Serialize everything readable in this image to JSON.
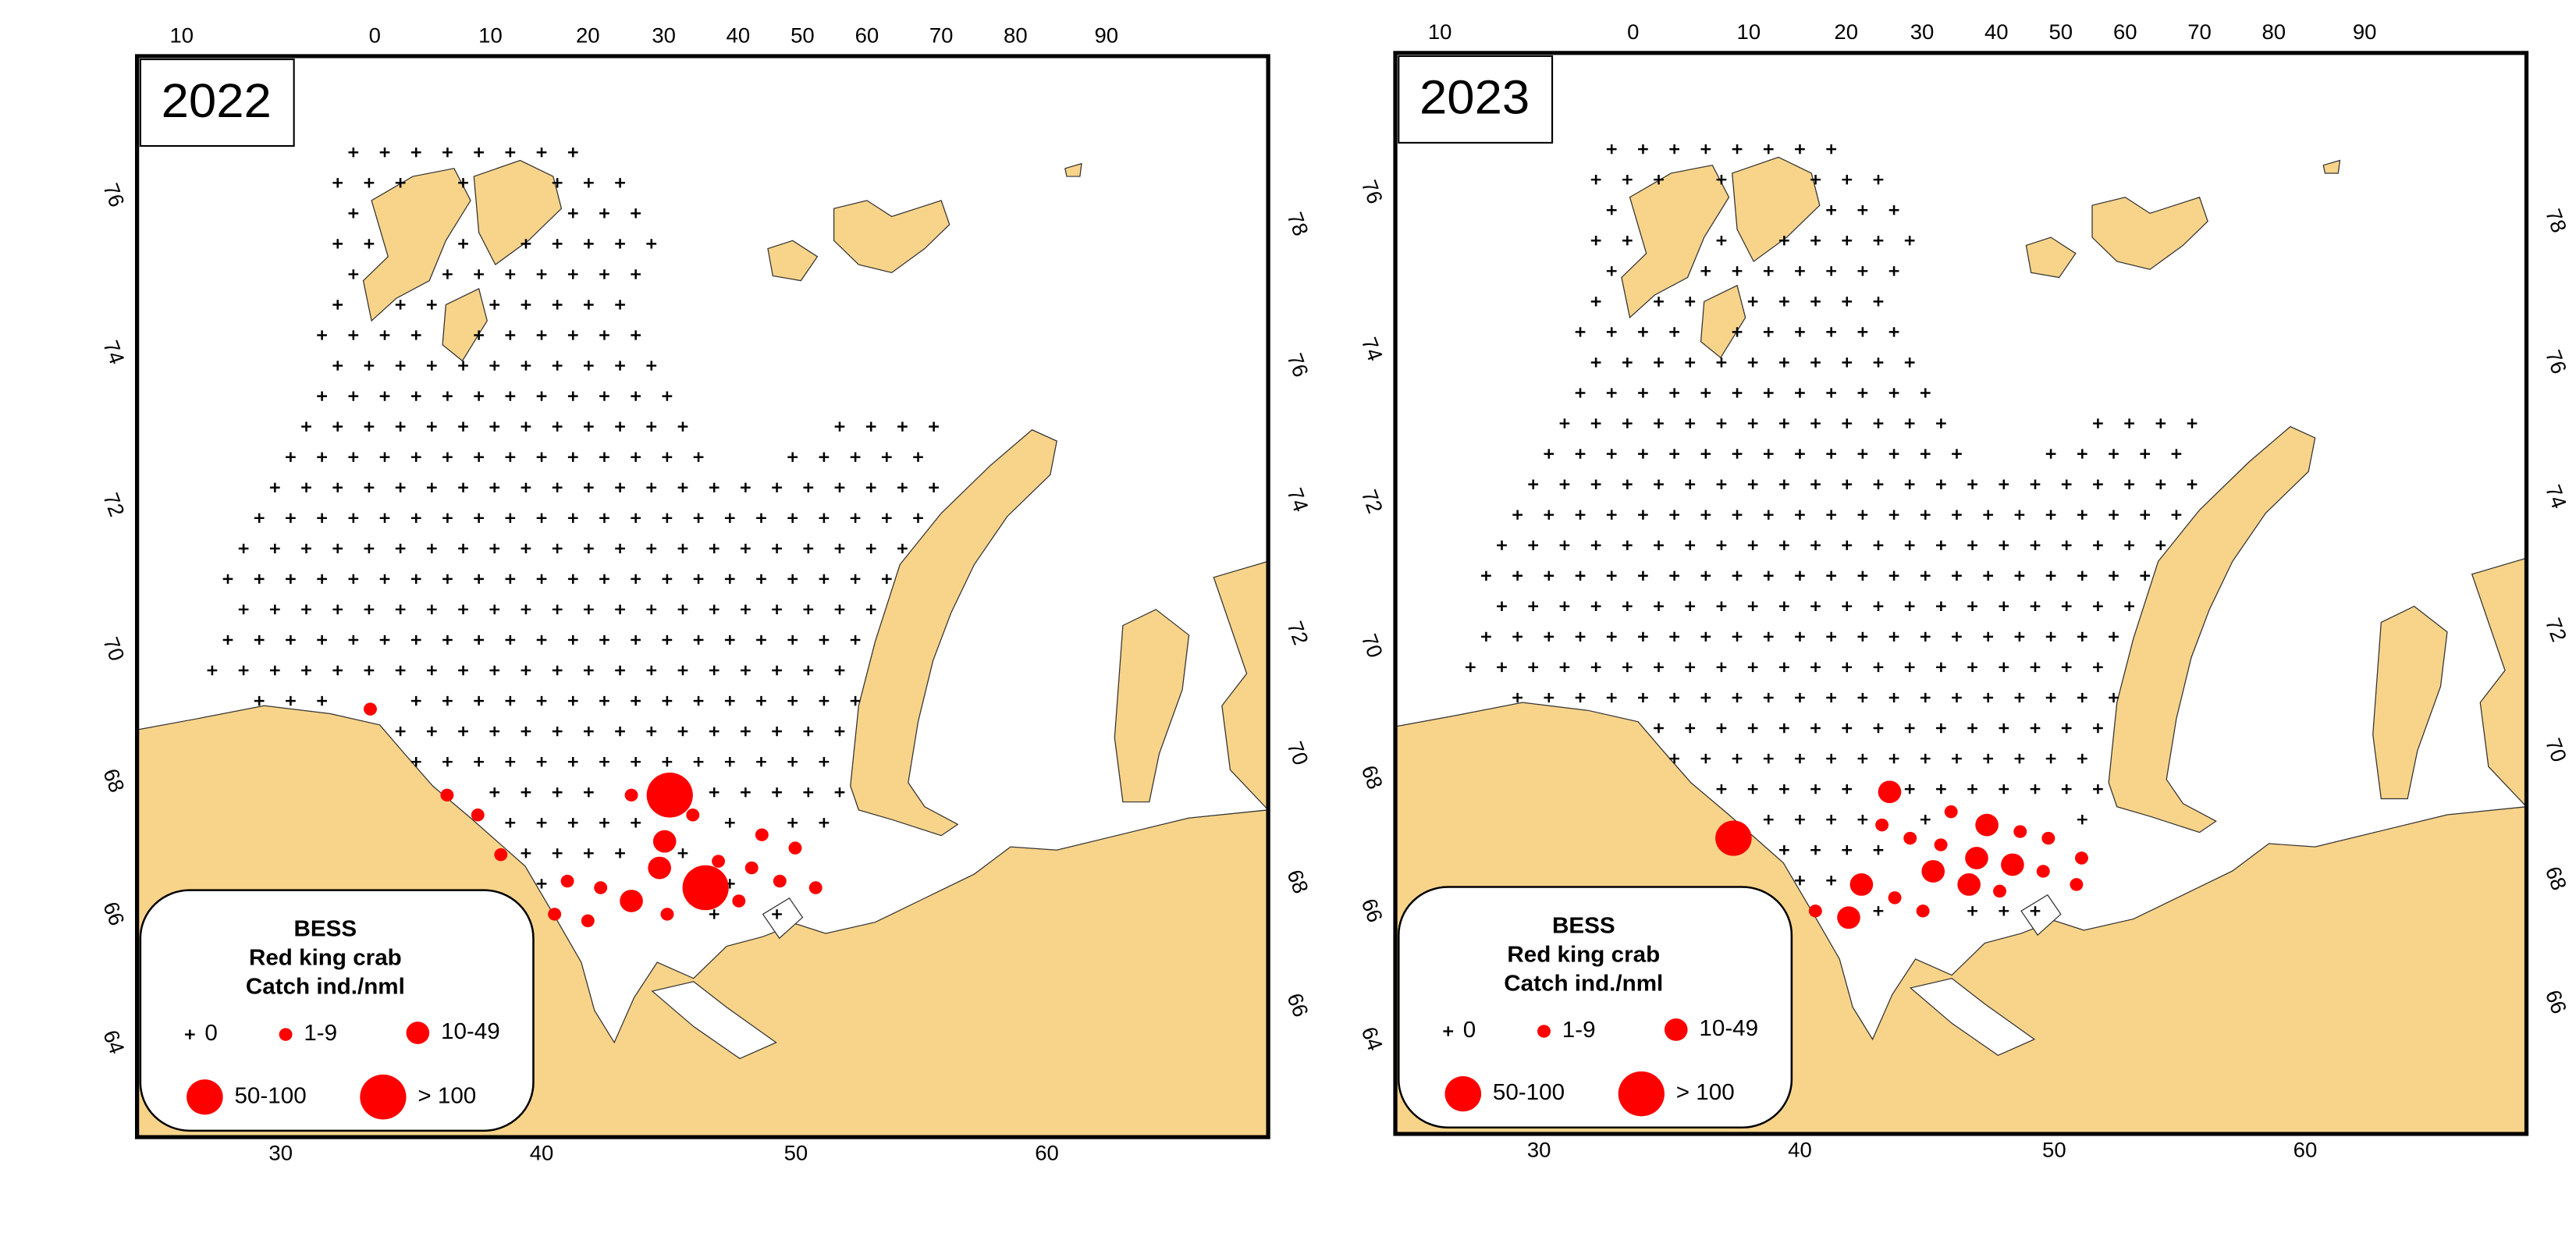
{
  "marker_color": "#ff0000",
  "land_color": "#f8d48a",
  "legend": {
    "title": [
      "BESS",
      "Red king crab",
      "Catch ind./nml"
    ],
    "classes": [
      "0",
      "1-9",
      "10-49",
      "50-100",
      "> 100"
    ]
  },
  "panels": [
    {
      "title": "2022",
      "top_axis": [
        10,
        0,
        10,
        20,
        30,
        40,
        50,
        60,
        70,
        80,
        90
      ],
      "left_axis": [
        76,
        74,
        72,
        70,
        68,
        66,
        64
      ],
      "right_axis": [
        78,
        76,
        74,
        72,
        70,
        68,
        66
      ],
      "bottom_axis": [
        30,
        40,
        50,
        60
      ],
      "stations": [
        {
          "lon": 33.5,
          "lat": 69.1,
          "class": 1
        },
        {
          "lon": 36.5,
          "lat": 67.8,
          "class": 1
        },
        {
          "lon": 37.7,
          "lat": 67.5,
          "class": 1
        },
        {
          "lon": 38.6,
          "lat": 66.9,
          "class": 1
        },
        {
          "lon": 40.7,
          "lat": 66.0,
          "class": 1
        },
        {
          "lon": 41.2,
          "lat": 66.5,
          "class": 1
        },
        {
          "lon": 42.0,
          "lat": 65.9,
          "class": 1
        },
        {
          "lon": 42.5,
          "lat": 66.4,
          "class": 1
        },
        {
          "lon": 43.7,
          "lat": 66.2,
          "class": 2
        },
        {
          "lon": 43.7,
          "lat": 67.8,
          "class": 1
        },
        {
          "lon": 45.2,
          "lat": 67.8,
          "class": 4
        },
        {
          "lon": 45.0,
          "lat": 67.1,
          "class": 2
        },
        {
          "lon": 44.8,
          "lat": 66.7,
          "class": 2
        },
        {
          "lon": 45.1,
          "lat": 66.0,
          "class": 1
        },
        {
          "lon": 46.1,
          "lat": 67.5,
          "class": 1
        },
        {
          "lon": 46.6,
          "lat": 66.4,
          "class": 4
        },
        {
          "lon": 47.1,
          "lat": 66.8,
          "class": 1
        },
        {
          "lon": 47.9,
          "lat": 66.2,
          "class": 1
        },
        {
          "lon": 48.8,
          "lat": 67.2,
          "class": 1
        },
        {
          "lon": 48.4,
          "lat": 66.7,
          "class": 1
        },
        {
          "lon": 49.5,
          "lat": 66.5,
          "class": 1
        },
        {
          "lon": 50.1,
          "lat": 67.0,
          "class": 1
        },
        {
          "lon": 50.9,
          "lat": 66.4,
          "class": 1
        }
      ]
    },
    {
      "title": "2023",
      "top_axis": [
        10,
        0,
        10,
        20,
        30,
        40,
        50,
        60,
        70,
        80,
        90
      ],
      "left_axis": [
        76,
        74,
        72,
        70,
        68,
        66,
        64
      ],
      "right_axis": [
        78,
        76,
        74,
        72,
        70,
        68,
        66
      ],
      "bottom_axis": [
        30,
        40,
        50,
        60
      ],
      "stations": [
        {
          "lon": 37.6,
          "lat": 67.1,
          "class": 3
        },
        {
          "lon": 40.8,
          "lat": 66.0,
          "class": 1
        },
        {
          "lon": 42.1,
          "lat": 65.9,
          "class": 2
        },
        {
          "lon": 42.6,
          "lat": 66.4,
          "class": 2
        },
        {
          "lon": 43.7,
          "lat": 67.8,
          "class": 2
        },
        {
          "lon": 43.4,
          "lat": 67.3,
          "class": 1
        },
        {
          "lon": 43.9,
          "lat": 66.2,
          "class": 1
        },
        {
          "lon": 44.5,
          "lat": 67.1,
          "class": 1
        },
        {
          "lon": 45.0,
          "lat": 66.0,
          "class": 1
        },
        {
          "lon": 45.4,
          "lat": 66.6,
          "class": 2
        },
        {
          "lon": 45.7,
          "lat": 67.0,
          "class": 1
        },
        {
          "lon": 46.1,
          "lat": 67.5,
          "class": 1
        },
        {
          "lon": 46.8,
          "lat": 66.4,
          "class": 2
        },
        {
          "lon": 47.1,
          "lat": 66.8,
          "class": 2
        },
        {
          "lon": 47.5,
          "lat": 67.3,
          "class": 2
        },
        {
          "lon": 48.0,
          "lat": 66.3,
          "class": 1
        },
        {
          "lon": 48.5,
          "lat": 66.7,
          "class": 2
        },
        {
          "lon": 48.8,
          "lat": 67.2,
          "class": 1
        },
        {
          "lon": 49.7,
          "lat": 66.6,
          "class": 1
        },
        {
          "lon": 49.9,
          "lat": 67.1,
          "class": 1
        },
        {
          "lon": 51.0,
          "lat": 66.4,
          "class": 1
        },
        {
          "lon": 51.2,
          "lat": 66.8,
          "class": 1
        }
      ]
    }
  ]
}
